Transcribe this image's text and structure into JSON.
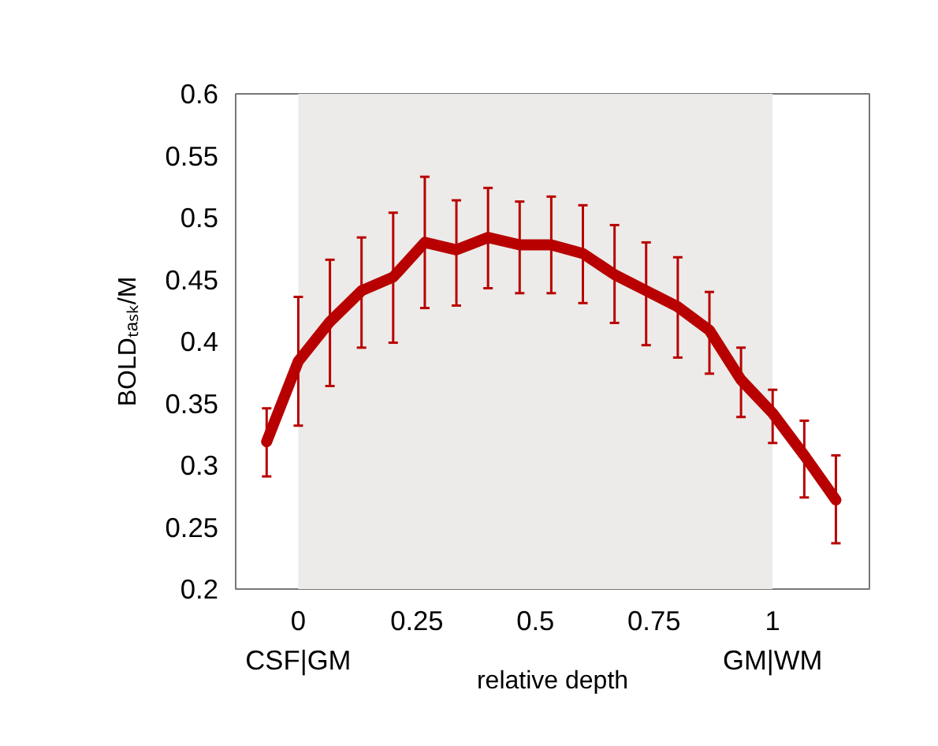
{
  "chart_data": {
    "type": "line",
    "xlabel": "relative depth",
    "ylabel": "BOLDₜₐₛₖ/M",
    "x": [
      -0.0667,
      0,
      0.0667,
      0.1333,
      0.2,
      0.2667,
      0.3333,
      0.4,
      0.4667,
      0.5333,
      0.6,
      0.6667,
      0.7333,
      0.8,
      0.8667,
      0.9333,
      1,
      1.0667,
      1.1333
    ],
    "series": [
      {
        "color": "#b80000",
        "values": [
          0.319,
          0.384,
          0.416,
          0.441,
          0.452,
          0.48,
          0.474,
          0.484,
          0.478,
          0.478,
          0.471,
          0.454,
          0.441,
          0.428,
          0.409,
          0.369,
          0.342,
          0.308,
          0.272
        ],
        "errors": [
          [
            0.291,
            0.346
          ],
          [
            0.332,
            0.436
          ],
          [
            0.364,
            0.466
          ],
          [
            0.395,
            0.484
          ],
          [
            0.399,
            0.504
          ],
          [
            0.427,
            0.533
          ],
          [
            0.429,
            0.514
          ],
          [
            0.443,
            0.524
          ],
          [
            0.439,
            0.513
          ],
          [
            0.439,
            0.517
          ],
          [
            0.431,
            0.51
          ],
          [
            0.415,
            0.494
          ],
          [
            0.397,
            0.48
          ],
          [
            0.387,
            0.468
          ],
          [
            0.374,
            0.44
          ],
          [
            0.339,
            0.395
          ],
          [
            0.318,
            0.361
          ],
          [
            0.274,
            0.336
          ],
          [
            0.237,
            0.308
          ]
        ]
      }
    ],
    "xlim": [
      -0.132,
      1.204
    ],
    "ylim": [
      0.2,
      0.6
    ],
    "xticks": [
      0,
      0.25,
      0.5,
      0.75,
      1
    ],
    "yticks": [
      0.2,
      0.25,
      0.3,
      0.35,
      0.4,
      0.45,
      0.5,
      0.55,
      0.6
    ],
    "bands": [
      {
        "axis": "x",
        "from": 0,
        "to": 1,
        "color": "#ecebe9"
      }
    ],
    "annotations": [
      "CSF|GM",
      "GM|WM"
    ],
    "grid": false,
    "marker": "none",
    "line_style": "solid"
  }
}
